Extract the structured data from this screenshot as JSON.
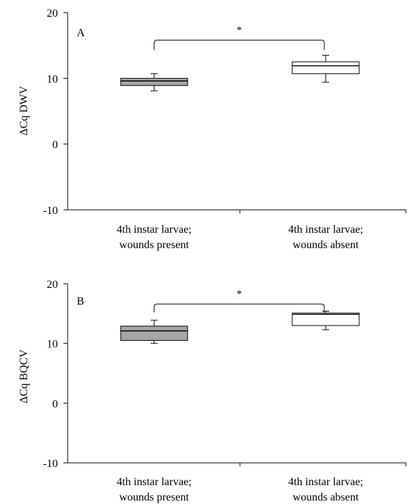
{
  "chart_data": [
    {
      "type": "box",
      "panel_label": "A",
      "ylabel": "ΔCq DWV",
      "xlabel": "",
      "ylim": [
        -10,
        20
      ],
      "yticks": [
        "20",
        "10",
        "0",
        "-10"
      ],
      "categories": [
        {
          "line1": "4th instar larvae;",
          "line2": "wounds present"
        },
        {
          "line1": "4th instar larvae;",
          "line2": "wounds absent"
        }
      ],
      "boxes": [
        {
          "whisker_low": 8.1,
          "q1": 8.9,
          "median": 9.6,
          "q3": 10.0,
          "whisker_high": 10.7,
          "fill": "#a6a6a6"
        },
        {
          "whisker_low": 9.4,
          "q1": 10.7,
          "median": 11.9,
          "q3": 12.5,
          "whisker_high": 13.5,
          "fill": "#ffffff"
        }
      ],
      "significance": {
        "label": "*",
        "bracket_y": 15.8,
        "tick_y": 14.3
      }
    },
    {
      "type": "box",
      "panel_label": "B",
      "ylabel": "ΔCq BQCV",
      "xlabel": "",
      "ylim": [
        -10,
        20
      ],
      "yticks": [
        "20",
        "10",
        "0",
        "-10"
      ],
      "categories": [
        {
          "line1": "4th instar larvae;",
          "line2": "wounds present"
        },
        {
          "line1": "4th instar larvae;",
          "line2": "wounds absent"
        }
      ],
      "boxes": [
        {
          "whisker_low": 10.0,
          "q1": 10.5,
          "median": 12.1,
          "q3": 12.9,
          "whisker_high": 13.9,
          "fill": "#a6a6a6"
        },
        {
          "whisker_low": 12.3,
          "q1": 13.0,
          "median": 14.9,
          "q3": 15.1,
          "whisker_high": 15.4,
          "fill": "#ffffff"
        }
      ],
      "significance": {
        "label": "*",
        "bracket_y": 16.6,
        "tick_y": 15.2
      }
    }
  ]
}
